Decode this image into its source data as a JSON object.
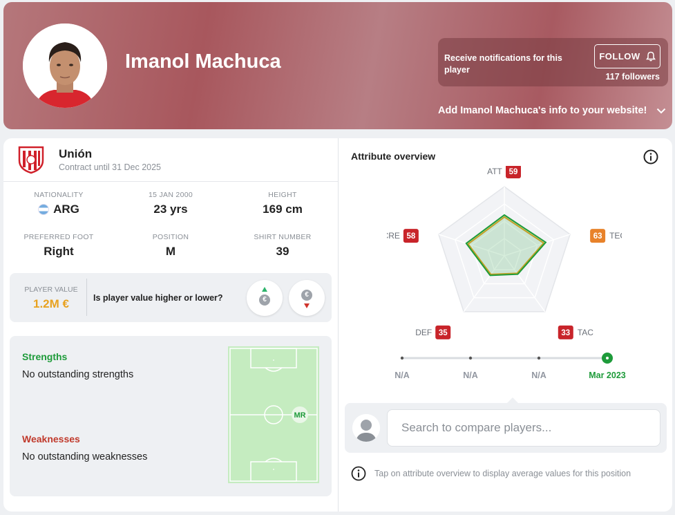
{
  "header": {
    "player_name": "Imanol Machuca",
    "notify_text": "Receive notifications for this player",
    "follow_label": "FOLLOW",
    "followers": "117 followers",
    "embed_text": "Add Imanol Machuca's info to your website!"
  },
  "club": {
    "name": "Unión",
    "contract": "Contract until 31 Dec 2025"
  },
  "stats": {
    "nationality": {
      "label": "NATIONALITY",
      "value": "ARG"
    },
    "birth": {
      "label": "15 JAN 2000",
      "value": "23 yrs"
    },
    "height": {
      "label": "HEIGHT",
      "value": "169 cm"
    },
    "foot": {
      "label": "PREFERRED FOOT",
      "value": "Right"
    },
    "position": {
      "label": "POSITION",
      "value": "M"
    },
    "shirt": {
      "label": "SHIRT NUMBER",
      "value": "39"
    }
  },
  "player_value": {
    "label": "PLAYER VALUE",
    "value": "1.2M €",
    "question": "Is player value higher or lower?",
    "currency_symbol": "€"
  },
  "strengths": {
    "title": "Strengths",
    "text": "No outstanding strengths"
  },
  "weaknesses": {
    "title": "Weaknesses",
    "text": "No outstanding weaknesses"
  },
  "pitch": {
    "position_marker": "MR"
  },
  "attribute_overview": {
    "title": "Attribute overview",
    "attributes": [
      {
        "key": "ATT",
        "value": 59,
        "color": "#c8242a"
      },
      {
        "key": "TEC",
        "value": 63,
        "color": "#e8822a"
      },
      {
        "key": "TAC",
        "value": 33,
        "color": "#c8242a"
      },
      {
        "key": "DEF",
        "value": 35,
        "color": "#c8242a"
      },
      {
        "key": "CRE",
        "value": 58,
        "color": "#c8242a"
      }
    ],
    "timeline": [
      "N/A",
      "N/A",
      "N/A",
      "Mar 2023"
    ],
    "compare_placeholder": "Search to compare players...",
    "hint": "Tap on attribute overview to display average values for this position"
  },
  "colors": {
    "accent_green": "#1e9b3a",
    "value_orange": "#e8a220",
    "weakness_red": "#c0392b"
  }
}
